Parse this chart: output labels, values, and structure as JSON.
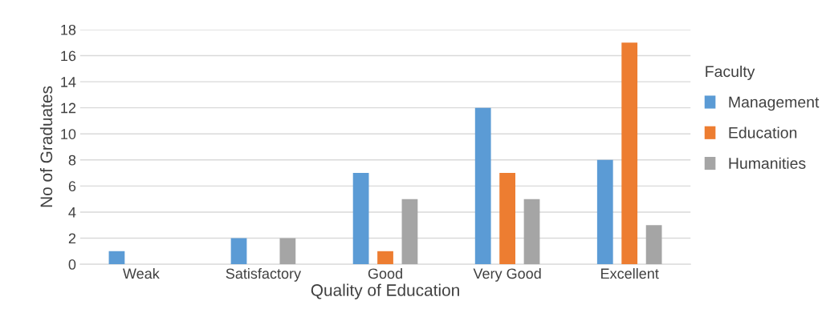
{
  "chart_data": {
    "type": "bar",
    "xlabel": "Quality of Education",
    "ylabel": "No of Graduates",
    "legend_title": "Faculty",
    "categories": [
      "Weak",
      "Satisfactory",
      "Good",
      "Very Good",
      "Excellent"
    ],
    "series": [
      {
        "name": "Management",
        "color": "#5b9bd5",
        "values": [
          1,
          2,
          7,
          12,
          8
        ]
      },
      {
        "name": "Education",
        "color": "#ed7d31",
        "values": [
          0,
          0,
          1,
          7,
          17
        ]
      },
      {
        "name": "Humanities",
        "color": "#a5a5a5",
        "values": [
          0,
          2,
          5,
          5,
          3
        ]
      }
    ],
    "ylim": [
      0,
      18
    ],
    "yticks": [
      0,
      2,
      4,
      6,
      8,
      10,
      12,
      14,
      16,
      18
    ],
    "grid": "y",
    "legend": "right"
  }
}
